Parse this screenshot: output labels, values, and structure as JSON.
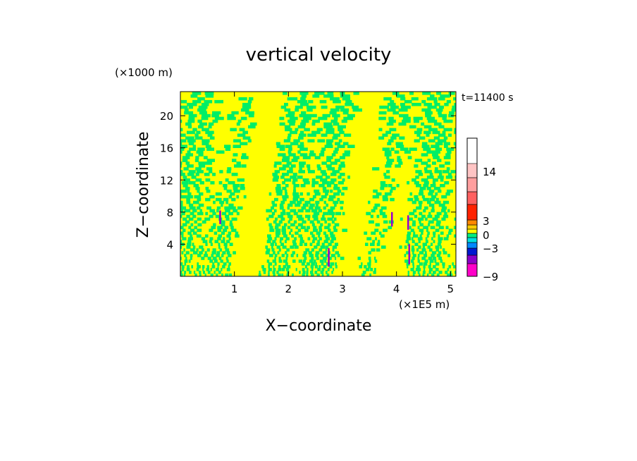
{
  "chart_data": {
    "type": "heatmap",
    "title": "vertical velocity",
    "time_label": "t=11400 s",
    "xlabel": "X−coordinate",
    "ylabel": "Z−coordinate",
    "x_unit": "(×1E5 m)",
    "y_unit": "(×1000 m)",
    "xlim": [
      0,
      5.1
    ],
    "ylim": [
      0,
      23
    ],
    "x_ticks": [
      "1",
      "2",
      "3",
      "4",
      "5"
    ],
    "y_ticks": [
      "4",
      "8",
      "12",
      "16",
      "20"
    ],
    "field": {
      "dominant_levels": [
        "green",
        "yellow"
      ],
      "pattern": "vertical alternating bands, finer near the ground"
    },
    "colorbar": {
      "labels": [
        "14",
        "3",
        "0",
        "−3",
        "−9"
      ],
      "levels": [
        {
          "color": "#ff00c8"
        },
        {
          "color": "#8a00c8"
        },
        {
          "color": "#0018d0"
        },
        {
          "color": "#0088ff"
        },
        {
          "color": "#00e0e0"
        },
        {
          "color": "#00ee80"
        },
        {
          "color": "#ffff00"
        },
        {
          "color": "#ffcc00"
        },
        {
          "color": "#ff8800"
        },
        {
          "color": "#ff2200"
        },
        {
          "color": "#ff6060"
        },
        {
          "color": "#ff9e9e"
        },
        {
          "color": "#ffc4c4"
        }
      ]
    },
    "colors": {
      "yellow": "#ffff00",
      "green": "#00ee66",
      "purple": "#9a00c8",
      "magenta": "#ff00c8"
    }
  }
}
